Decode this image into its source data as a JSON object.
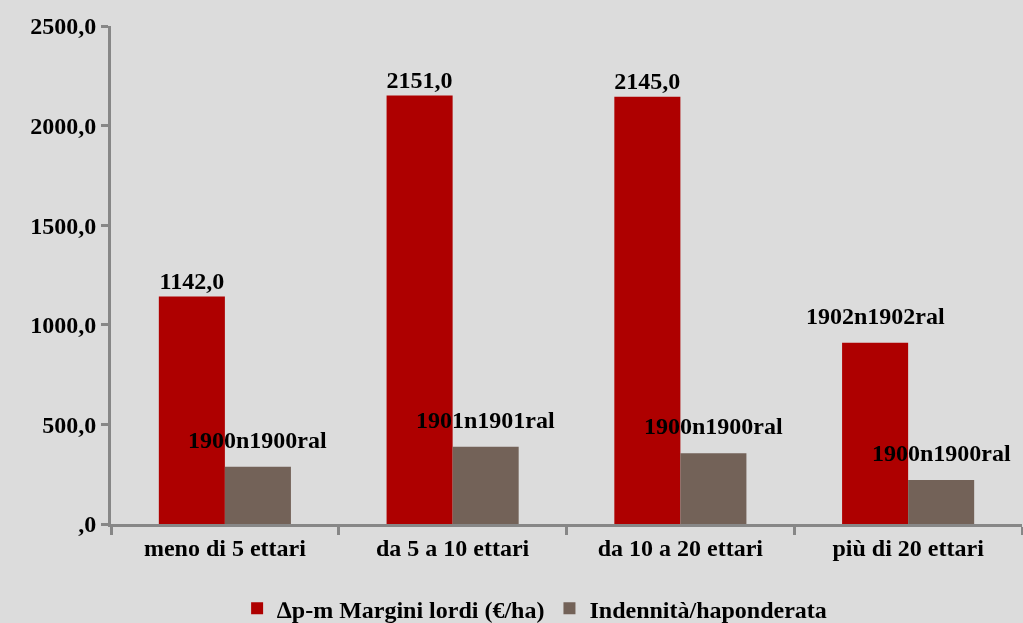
{
  "chart_data": {
    "type": "bar",
    "categories": [
      "meno di 5 ettari",
      "da 5 a 10 ettari",
      "da 10 a 20 ettari",
      "più di 20 ettari"
    ],
    "series": [
      {
        "name": "∆p-m Margini lordi (€/ha)",
        "color": "#ae0000",
        "values": [
          1142,
          2151,
          2145,
          910
        ],
        "value_labels": [
          "1142,0",
          "2151,0",
          "2145,0",
          null
        ]
      },
      {
        "name": "Indennità/haponderata",
        "color": "#736258",
        "values": [
          288,
          388,
          355,
          221
        ]
      }
    ],
    "annotations": [
      {
        "text": "1902n1902ral",
        "x": "più di 20 ettari",
        "y": 910
      },
      {
        "text": "1900n1900ral",
        "x": "meno di 5 ettari",
        "y": 288
      },
      {
        "text": "1901n1901ral",
        "x": "da 5 a 10 ettari",
        "y": 388
      },
      {
        "text": "1900n1900ral",
        "x": "da 10 a 20 ettari",
        "y": 355
      },
      {
        "text": "1900n1900ral",
        "x": "più di 20 ettari",
        "y": 221
      }
    ],
    "ylim": [
      0,
      2500
    ],
    "yticks": [
      {
        "value": 0,
        "label": ",0"
      },
      {
        "value": 500,
        "label": "500,0"
      },
      {
        "value": 1000,
        "label": "1000,0"
      },
      {
        "value": 1500,
        "label": "1500,0"
      },
      {
        "value": 2000,
        "label": "2000,0"
      },
      {
        "value": 2500,
        "label": "2500,0"
      }
    ],
    "grid": false,
    "legend": "bottom"
  }
}
